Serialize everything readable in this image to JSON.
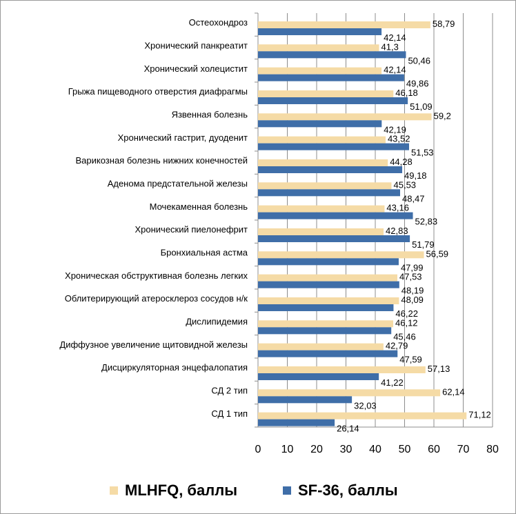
{
  "chart_data": {
    "type": "bar",
    "orientation": "horizontal",
    "categories": [
      "Остеохондроз",
      "Хронический панкреатит",
      "Хронический холецистит",
      "Грыжа пищеводного отверстия диафрагмы",
      "Язвенная болезнь",
      "Хронический гастрит, дуоденит",
      "Варикозная болезнь нижних конечностей",
      "Аденома предстательной железы",
      "Мочекаменная болезнь",
      "Хронический пиелонефрит",
      "Бронхиальная астма",
      "Хроническая обструктивная болезнь легких",
      "Облитерирующий атеросклероз сосудов н/к",
      "Дислипидемия",
      "Диффузное увеличение щитовидной железы",
      "Дисциркуляторная энцефалопатия",
      "СД 2 тип",
      "СД 1 тип"
    ],
    "series": [
      {
        "name": "MLHFQ, баллы",
        "color": "#f5dba6",
        "values": [
          58.79,
          41.3,
          42.14,
          46.18,
          59.2,
          43.52,
          44.28,
          45.53,
          43.16,
          42.83,
          56.59,
          47.53,
          48.09,
          46.12,
          42.79,
          57.13,
          62.14,
          71.12
        ],
        "labels": [
          "58,79",
          "41,3",
          "42,14",
          "46,18",
          "59,2",
          "43,52",
          "44,28",
          "45,53",
          "43,16",
          "42,83",
          "56,59",
          "47,53",
          "48,09",
          "46,12",
          "42,79",
          "57,13",
          "62,14",
          "71,12"
        ]
      },
      {
        "name": "SF-36, баллы",
        "color": "#3f6ea8",
        "values": [
          42.14,
          50.46,
          49.86,
          51.09,
          42.19,
          51.53,
          49.18,
          48.47,
          52.83,
          51.79,
          47.99,
          48.19,
          46.22,
          45.46,
          47.59,
          41.22,
          32.03,
          26.14
        ],
        "labels": [
          "42,14",
          "50,46",
          "49,86",
          "51,09",
          "42,19",
          "51,53",
          "49,18",
          "48,47",
          "52,83",
          "51,79",
          "47,99",
          "48,19",
          "46,22",
          "45,46",
          "47,59",
          "41,22",
          "32,03",
          "26,14"
        ]
      }
    ],
    "x_ticks": [
      "0",
      "10",
      "20",
      "30",
      "40",
      "50",
      "60",
      "70",
      "80"
    ],
    "xlim": [
      0,
      80
    ],
    "grid": true,
    "legend_position": "bottom"
  }
}
